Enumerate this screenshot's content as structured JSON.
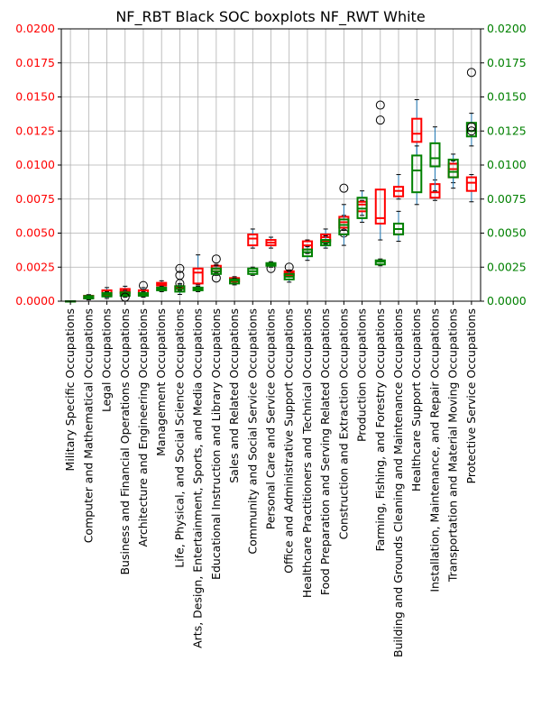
{
  "chart_data": {
    "type": "boxplot",
    "title": "NF_RBT Black SOC boxplots NF_RWT White",
    "xlabel": "",
    "ylabel": "",
    "ylim": [
      0,
      0.02
    ],
    "yticks": [
      "0.0000",
      "0.0025",
      "0.0050",
      "0.0075",
      "0.0100",
      "0.0125",
      "0.0150",
      "0.0175",
      "0.0200"
    ],
    "grid": true,
    "legend": "none",
    "categories": [
      "Military Specific Occupations",
      "Computer and Mathematical Occupations",
      "Legal Occupations",
      "Business and Financial Operations Occupations",
      "Architecture and Engineering Occupations",
      "Management Occupations",
      "Life, Physical, and Social Science Occupations",
      "Arts, Design, Entertainment, Sports, and Media Occupations",
      "Educational Instruction and Library Occupations",
      "Sales and Related Occupations",
      "Community and Social Service Occupations",
      "Personal Care and Service Occupations",
      "Office and Administrative Support Occupations",
      "Healthcare Practitioners and Technical Occupations",
      "Food Preparation and Serving Related Occupations",
      "Construction and Extraction Occupations",
      "Production Occupations",
      "Farming, Fishing, and Forestry Occupations",
      "Building and Grounds Cleaning and Maintenance Occupations",
      "Healthcare Support Occupations",
      "Installation, Maintenance, and Repair Occupations",
      "Transportation and Material Moving Occupations",
      "Protective Service Occupations"
    ],
    "series": [
      {
        "color": "#ff0000",
        "axis": "left",
        "boxes": [
          {
            "wl": 0.0,
            "q1": 0.0,
            "med": 0.0,
            "q3": 0.0,
            "wh": 0.0,
            "fliers": []
          },
          {
            "wl": 0.00015,
            "q1": 0.00022,
            "med": 0.0003,
            "q3": 0.0004,
            "wh": 0.00048,
            "fliers": []
          },
          {
            "wl": 0.0003,
            "q1": 0.00045,
            "med": 0.0006,
            "q3": 0.0008,
            "wh": 0.001,
            "fliers": []
          },
          {
            "wl": 0.0004,
            "q1": 0.0006,
            "med": 0.00075,
            "q3": 0.0009,
            "wh": 0.0011,
            "fliers": []
          },
          {
            "wl": 0.0003,
            "q1": 0.00045,
            "med": 0.0006,
            "q3": 0.0008,
            "wh": 0.001,
            "fliers": [
              0.00115
            ]
          },
          {
            "wl": 0.001,
            "q1": 0.00115,
            "med": 0.00125,
            "q3": 0.00135,
            "wh": 0.0015,
            "fliers": []
          },
          {
            "wl": 0.0008,
            "q1": 0.0009,
            "med": 0.001,
            "q3": 0.0011,
            "wh": 0.0012,
            "fliers": [
              0.0013,
              0.0019,
              0.0024
            ]
          },
          {
            "wl": 0.0012,
            "q1": 0.0013,
            "med": 0.0021,
            "q3": 0.0024,
            "wh": 0.0034,
            "fliers": []
          },
          {
            "wl": 0.0021,
            "q1": 0.0022,
            "med": 0.0024,
            "q3": 0.0026,
            "wh": 0.0027,
            "fliers": [
              0.0031,
              0.0017
            ]
          },
          {
            "wl": 0.0014,
            "q1": 0.00145,
            "med": 0.00155,
            "q3": 0.0017,
            "wh": 0.0018,
            "fliers": []
          },
          {
            "wl": 0.0039,
            "q1": 0.0041,
            "med": 0.0046,
            "q3": 0.0049,
            "wh": 0.0053,
            "fliers": []
          },
          {
            "wl": 0.0039,
            "q1": 0.0041,
            "med": 0.0043,
            "q3": 0.0045,
            "wh": 0.0047,
            "fliers": [
              0.0024
            ]
          },
          {
            "wl": 0.0018,
            "q1": 0.0019,
            "med": 0.0021,
            "q3": 0.0022,
            "wh": 0.0023,
            "fliers": [
              0.0025
            ]
          },
          {
            "wl": 0.0035,
            "q1": 0.0038,
            "med": 0.0041,
            "q3": 0.0044,
            "wh": 0.0045,
            "fliers": []
          },
          {
            "wl": 0.0042,
            "q1": 0.0044,
            "med": 0.0047,
            "q3": 0.0049,
            "wh": 0.0053,
            "fliers": []
          },
          {
            "wl": 0.0052,
            "q1": 0.0054,
            "med": 0.0058,
            "q3": 0.0062,
            "wh": 0.0063,
            "fliers": [
              0.005
            ]
          },
          {
            "wl": 0.0063,
            "q1": 0.0066,
            "med": 0.0071,
            "q3": 0.0073,
            "wh": 0.0074,
            "fliers": []
          },
          {
            "wl": 0.0045,
            "q1": 0.0057,
            "med": 0.0061,
            "q3": 0.0082,
            "wh": 0.0082,
            "fliers": [
              0.0133,
              0.0144
            ]
          },
          {
            "wl": 0.0075,
            "q1": 0.0077,
            "med": 0.0081,
            "q3": 0.0084,
            "wh": 0.0093,
            "fliers": []
          },
          {
            "wl": 0.0107,
            "q1": 0.0117,
            "med": 0.0123,
            "q3": 0.0134,
            "wh": 0.0148,
            "fliers": []
          },
          {
            "wl": 0.0074,
            "q1": 0.0076,
            "med": 0.008,
            "q3": 0.0086,
            "wh": 0.0089,
            "fliers": []
          },
          {
            "wl": 0.0087,
            "q1": 0.0091,
            "med": 0.0097,
            "q3": 0.0101,
            "wh": 0.0103,
            "fliers": []
          },
          {
            "wl": 0.0073,
            "q1": 0.0081,
            "med": 0.0087,
            "q3": 0.0091,
            "wh": 0.0093,
            "fliers": []
          }
        ]
      },
      {
        "color": "#008000",
        "axis": "right",
        "boxes": [
          {
            "wl": 0.0,
            "q1": 0.0,
            "med": 0.0,
            "q3": 0.0,
            "wh": 0.0,
            "fliers": []
          },
          {
            "wl": 0.0001,
            "q1": 0.0002,
            "med": 0.00028,
            "q3": 0.00038,
            "wh": 0.00045,
            "fliers": []
          },
          {
            "wl": 0.0002,
            "q1": 0.00035,
            "med": 0.0005,
            "q3": 0.0006,
            "wh": 0.0007,
            "fliers": []
          },
          {
            "wl": 0.0003,
            "q1": 0.0004,
            "med": 0.0005,
            "q3": 0.00065,
            "wh": 0.0008,
            "fliers": [
              0.0003
            ]
          },
          {
            "wl": 0.0003,
            "q1": 0.0004,
            "med": 0.0005,
            "q3": 0.0006,
            "wh": 0.0007,
            "fliers": []
          },
          {
            "wl": 0.0007,
            "q1": 0.0008,
            "med": 0.0009,
            "q3": 0.001,
            "wh": 0.0011,
            "fliers": []
          },
          {
            "wl": 0.0005,
            "q1": 0.0007,
            "med": 0.0009,
            "q3": 0.0011,
            "wh": 0.0013,
            "fliers": []
          },
          {
            "wl": 0.0007,
            "q1": 0.0008,
            "med": 0.0009,
            "q3": 0.001,
            "wh": 0.0011,
            "fliers": []
          },
          {
            "wl": 0.0019,
            "q1": 0.002,
            "med": 0.0022,
            "q3": 0.0024,
            "wh": 0.0026,
            "fliers": []
          },
          {
            "wl": 0.0012,
            "q1": 0.0013,
            "med": 0.0015,
            "q3": 0.0016,
            "wh": 0.0017,
            "fliers": []
          },
          {
            "wl": 0.0019,
            "q1": 0.002,
            "med": 0.0022,
            "q3": 0.0024,
            "wh": 0.0025,
            "fliers": []
          },
          {
            "wl": 0.0025,
            "q1": 0.0026,
            "med": 0.0027,
            "q3": 0.0028,
            "wh": 0.0029,
            "fliers": []
          },
          {
            "wl": 0.0014,
            "q1": 0.0016,
            "med": 0.0018,
            "q3": 0.002,
            "wh": 0.0022,
            "fliers": []
          },
          {
            "wl": 0.003,
            "q1": 0.0033,
            "med": 0.0036,
            "q3": 0.0038,
            "wh": 0.004,
            "fliers": []
          },
          {
            "wl": 0.0039,
            "q1": 0.0041,
            "med": 0.0043,
            "q3": 0.0045,
            "wh": 0.0048,
            "fliers": []
          },
          {
            "wl": 0.0041,
            "q1": 0.0049,
            "med": 0.0056,
            "q3": 0.006,
            "wh": 0.0071,
            "fliers": [
              0.0083
            ]
          },
          {
            "wl": 0.0058,
            "q1": 0.0061,
            "med": 0.0068,
            "q3": 0.0076,
            "wh": 0.0081,
            "fliers": []
          },
          {
            "wl": 0.0026,
            "q1": 0.0027,
            "med": 0.0029,
            "q3": 0.003,
            "wh": 0.0031,
            "fliers": []
          },
          {
            "wl": 0.0044,
            "q1": 0.0049,
            "med": 0.0053,
            "q3": 0.0057,
            "wh": 0.0066,
            "fliers": []
          },
          {
            "wl": 0.0071,
            "q1": 0.008,
            "med": 0.0096,
            "q3": 0.0107,
            "wh": 0.0114,
            "fliers": []
          },
          {
            "wl": 0.0081,
            "q1": 0.0099,
            "med": 0.0105,
            "q3": 0.0116,
            "wh": 0.0128,
            "fliers": []
          },
          {
            "wl": 0.0083,
            "q1": 0.0091,
            "med": 0.0095,
            "q3": 0.0104,
            "wh": 0.0108,
            "fliers": []
          },
          {
            "wl": 0.0114,
            "q1": 0.0121,
            "med": 0.0125,
            "q3": 0.0131,
            "wh": 0.0138,
            "fliers": [
              0.0168,
              0.0128,
              0.0125
            ]
          }
        ]
      }
    ]
  }
}
